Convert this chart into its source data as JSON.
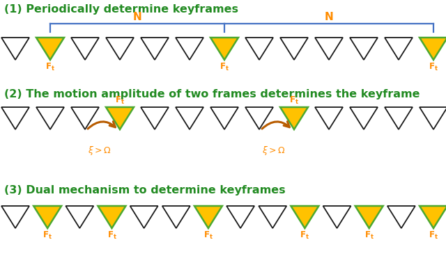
{
  "title1": "(1) Periodically determine keyframes",
  "title2": "(2) The motion amplitude of two frames determines the keyframe",
  "title3": "(3) Dual mechanism to determine keyframes",
  "title_color": "#228B22",
  "title_fontsize": 11.5,
  "orange_color": "#FF8C00",
  "gold_color": "#FFC200",
  "black_color": "#1a1a1a",
  "blue_color": "#4472C4",
  "green_outline": "#4CA830",
  "arrow_color": "#B85C00",
  "bg_color": "#FFFFFF",
  "n_triangles_row1": 13,
  "n_triangles_row2": 13,
  "n_triangles_row3": 14,
  "row1_filled": [
    1,
    6,
    12
  ],
  "row2_filled": [
    3,
    8
  ],
  "row3_filled": [
    1,
    3,
    6,
    9,
    11,
    13
  ]
}
